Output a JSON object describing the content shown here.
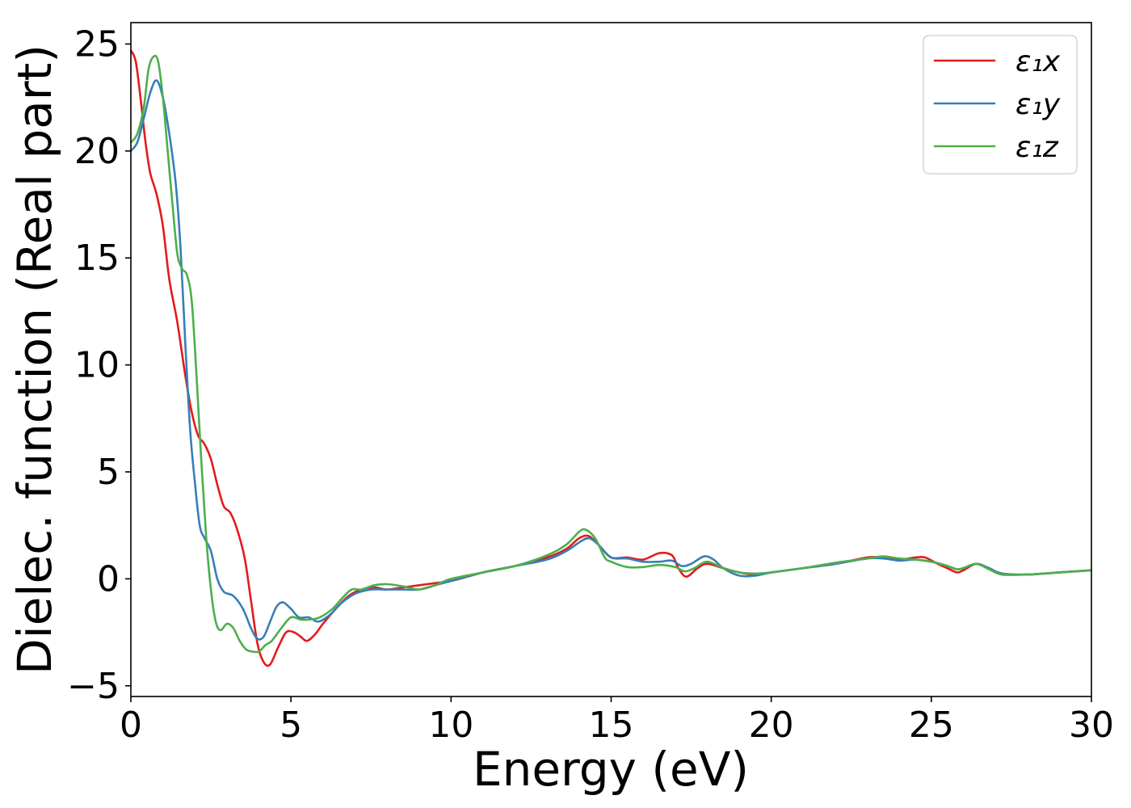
{
  "chart_data": {
    "type": "line",
    "title": "",
    "xlabel": "Energy (eV)",
    "ylabel": "Dielec. function (Real part)",
    "xlim": [
      0,
      30
    ],
    "ylim": [
      -5.5,
      26
    ],
    "xticks": [
      0,
      5,
      10,
      15,
      20,
      25,
      30
    ],
    "yticks": [
      -5,
      0,
      5,
      10,
      15,
      20,
      25
    ],
    "grid": false,
    "legend_position": "top-right",
    "series": [
      {
        "name": "ε₁x",
        "color": "#e41a1c",
        "points": [
          [
            0,
            24.7
          ],
          [
            0.15,
            24.2
          ],
          [
            0.3,
            22.5
          ],
          [
            0.45,
            20.5
          ],
          [
            0.6,
            19.0
          ],
          [
            0.8,
            18.0
          ],
          [
            1.0,
            16.5
          ],
          [
            1.2,
            14.0
          ],
          [
            1.45,
            12.0
          ],
          [
            1.7,
            9.5
          ],
          [
            1.9,
            7.8
          ],
          [
            2.1,
            6.7
          ],
          [
            2.3,
            6.3
          ],
          [
            2.5,
            5.6
          ],
          [
            2.7,
            4.4
          ],
          [
            2.9,
            3.4
          ],
          [
            3.1,
            3.1
          ],
          [
            3.3,
            2.4
          ],
          [
            3.55,
            1.0
          ],
          [
            3.75,
            -1.0
          ],
          [
            3.95,
            -3.0
          ],
          [
            4.15,
            -3.9
          ],
          [
            4.35,
            -4.0
          ],
          [
            4.6,
            -3.2
          ],
          [
            4.85,
            -2.5
          ],
          [
            5.1,
            -2.5
          ],
          [
            5.3,
            -2.7
          ],
          [
            5.5,
            -2.9
          ],
          [
            5.75,
            -2.6
          ],
          [
            6.0,
            -2.1
          ],
          [
            6.4,
            -1.4
          ],
          [
            6.8,
            -0.8
          ],
          [
            7.2,
            -0.5
          ],
          [
            7.6,
            -0.4
          ],
          [
            8.0,
            -0.5
          ],
          [
            8.5,
            -0.4
          ],
          [
            9.0,
            -0.3
          ],
          [
            9.5,
            -0.2
          ],
          [
            10.0,
            -0.1
          ],
          [
            11.0,
            0.3
          ],
          [
            12.0,
            0.6
          ],
          [
            13.0,
            1.0
          ],
          [
            13.6,
            1.4
          ],
          [
            14.0,
            1.9
          ],
          [
            14.3,
            2.0
          ],
          [
            14.6,
            1.6
          ],
          [
            15.0,
            1.0
          ],
          [
            15.5,
            1.0
          ],
          [
            16.0,
            0.9
          ],
          [
            16.5,
            1.2
          ],
          [
            16.9,
            1.1
          ],
          [
            17.1,
            0.5
          ],
          [
            17.35,
            0.1
          ],
          [
            17.7,
            0.5
          ],
          [
            18.0,
            0.7
          ],
          [
            18.5,
            0.5
          ],
          [
            19.0,
            0.3
          ],
          [
            19.5,
            0.2
          ],
          [
            20.0,
            0.3
          ],
          [
            21.0,
            0.5
          ],
          [
            22.0,
            0.7
          ],
          [
            23.0,
            1.0
          ],
          [
            23.5,
            1.0
          ],
          [
            24.0,
            0.9
          ],
          [
            24.5,
            1.0
          ],
          [
            24.8,
            1.0
          ],
          [
            25.2,
            0.7
          ],
          [
            25.5,
            0.5
          ],
          [
            25.8,
            0.3
          ],
          [
            26.0,
            0.4
          ],
          [
            26.4,
            0.7
          ],
          [
            26.8,
            0.5
          ],
          [
            27.2,
            0.25
          ],
          [
            28.0,
            0.2
          ],
          [
            29.0,
            0.3
          ],
          [
            30.0,
            0.4
          ]
        ]
      },
      {
        "name": "ε₁y",
        "color": "#377eb8",
        "points": [
          [
            0,
            20.0
          ],
          [
            0.2,
            20.4
          ],
          [
            0.4,
            21.5
          ],
          [
            0.6,
            22.7
          ],
          [
            0.8,
            23.3
          ],
          [
            1.0,
            22.5
          ],
          [
            1.2,
            20.8
          ],
          [
            1.4,
            18.5
          ],
          [
            1.55,
            15.5
          ],
          [
            1.7,
            11.0
          ],
          [
            1.85,
            7.0
          ],
          [
            2.0,
            4.5
          ],
          [
            2.15,
            2.5
          ],
          [
            2.3,
            1.9
          ],
          [
            2.5,
            1.3
          ],
          [
            2.7,
            0.0
          ],
          [
            2.9,
            -0.6
          ],
          [
            3.2,
            -0.8
          ],
          [
            3.5,
            -1.4
          ],
          [
            3.75,
            -2.3
          ],
          [
            3.95,
            -2.8
          ],
          [
            4.15,
            -2.7
          ],
          [
            4.35,
            -2.0
          ],
          [
            4.55,
            -1.3
          ],
          [
            4.75,
            -1.1
          ],
          [
            5.0,
            -1.4
          ],
          [
            5.25,
            -1.8
          ],
          [
            5.55,
            -1.8
          ],
          [
            5.85,
            -2.0
          ],
          [
            6.2,
            -1.7
          ],
          [
            6.6,
            -1.1
          ],
          [
            7.0,
            -0.7
          ],
          [
            7.5,
            -0.5
          ],
          [
            8.0,
            -0.5
          ],
          [
            8.5,
            -0.5
          ],
          [
            9.0,
            -0.5
          ],
          [
            9.5,
            -0.3
          ],
          [
            10.0,
            -0.1
          ],
          [
            11.0,
            0.3
          ],
          [
            12.0,
            0.6
          ],
          [
            13.0,
            0.9
          ],
          [
            13.6,
            1.3
          ],
          [
            14.0,
            1.7
          ],
          [
            14.3,
            1.9
          ],
          [
            14.6,
            1.6
          ],
          [
            15.0,
            1.0
          ],
          [
            15.5,
            0.95
          ],
          [
            16.0,
            0.8
          ],
          [
            16.5,
            0.8
          ],
          [
            16.9,
            0.85
          ],
          [
            17.2,
            0.6
          ],
          [
            17.5,
            0.7
          ],
          [
            17.9,
            1.05
          ],
          [
            18.2,
            0.9
          ],
          [
            18.5,
            0.5
          ],
          [
            19.0,
            0.15
          ],
          [
            19.5,
            0.15
          ],
          [
            20.0,
            0.3
          ],
          [
            21.0,
            0.5
          ],
          [
            22.0,
            0.7
          ],
          [
            23.0,
            0.95
          ],
          [
            23.5,
            0.95
          ],
          [
            24.0,
            0.85
          ],
          [
            24.5,
            0.9
          ],
          [
            25.0,
            0.8
          ],
          [
            25.4,
            0.65
          ],
          [
            25.8,
            0.45
          ],
          [
            26.0,
            0.5
          ],
          [
            26.4,
            0.7
          ],
          [
            26.8,
            0.5
          ],
          [
            27.2,
            0.25
          ],
          [
            28.0,
            0.2
          ],
          [
            29.0,
            0.3
          ],
          [
            30.0,
            0.4
          ]
        ]
      },
      {
        "name": "ε₁z",
        "color": "#4daf4a",
        "points": [
          [
            0,
            20.4
          ],
          [
            0.2,
            20.8
          ],
          [
            0.4,
            22.0
          ],
          [
            0.55,
            23.8
          ],
          [
            0.7,
            24.4
          ],
          [
            0.85,
            24.2
          ],
          [
            1.0,
            22.5
          ],
          [
            1.15,
            20.0
          ],
          [
            1.3,
            17.5
          ],
          [
            1.45,
            15.2
          ],
          [
            1.6,
            14.5
          ],
          [
            1.75,
            14.2
          ],
          [
            1.9,
            13.0
          ],
          [
            2.05,
            9.5
          ],
          [
            2.2,
            5.5
          ],
          [
            2.35,
            2.0
          ],
          [
            2.5,
            -0.5
          ],
          [
            2.65,
            -2.0
          ],
          [
            2.8,
            -2.4
          ],
          [
            3.0,
            -2.1
          ],
          [
            3.2,
            -2.3
          ],
          [
            3.4,
            -2.9
          ],
          [
            3.6,
            -3.3
          ],
          [
            3.8,
            -3.4
          ],
          [
            4.0,
            -3.4
          ],
          [
            4.2,
            -3.1
          ],
          [
            4.4,
            -2.9
          ],
          [
            4.7,
            -2.3
          ],
          [
            5.0,
            -1.8
          ],
          [
            5.3,
            -1.9
          ],
          [
            5.6,
            -1.9
          ],
          [
            5.9,
            -1.8
          ],
          [
            6.3,
            -1.4
          ],
          [
            6.6,
            -0.9
          ],
          [
            6.9,
            -0.5
          ],
          [
            7.2,
            -0.5
          ],
          [
            7.6,
            -0.3
          ],
          [
            8.0,
            -0.25
          ],
          [
            8.5,
            -0.35
          ],
          [
            9.0,
            -0.5
          ],
          [
            9.5,
            -0.3
          ],
          [
            10.0,
            0.0
          ],
          [
            11.0,
            0.3
          ],
          [
            12.0,
            0.6
          ],
          [
            13.0,
            1.1
          ],
          [
            13.6,
            1.6
          ],
          [
            14.0,
            2.2
          ],
          [
            14.2,
            2.3
          ],
          [
            14.5,
            1.9
          ],
          [
            14.8,
            1.0
          ],
          [
            15.0,
            0.8
          ],
          [
            15.5,
            0.55
          ],
          [
            16.0,
            0.55
          ],
          [
            16.5,
            0.65
          ],
          [
            17.0,
            0.55
          ],
          [
            17.3,
            0.35
          ],
          [
            17.6,
            0.5
          ],
          [
            18.0,
            0.8
          ],
          [
            18.5,
            0.5
          ],
          [
            19.0,
            0.3
          ],
          [
            19.5,
            0.25
          ],
          [
            20.0,
            0.3
          ],
          [
            21.0,
            0.5
          ],
          [
            22.0,
            0.75
          ],
          [
            23.0,
            0.95
          ],
          [
            23.5,
            1.05
          ],
          [
            24.0,
            0.95
          ],
          [
            24.5,
            0.9
          ],
          [
            25.0,
            0.8
          ],
          [
            25.5,
            0.6
          ],
          [
            25.8,
            0.45
          ],
          [
            26.0,
            0.5
          ],
          [
            26.4,
            0.7
          ],
          [
            26.8,
            0.45
          ],
          [
            27.2,
            0.2
          ],
          [
            28.0,
            0.2
          ],
          [
            29.0,
            0.3
          ],
          [
            30.0,
            0.4
          ]
        ]
      }
    ]
  }
}
